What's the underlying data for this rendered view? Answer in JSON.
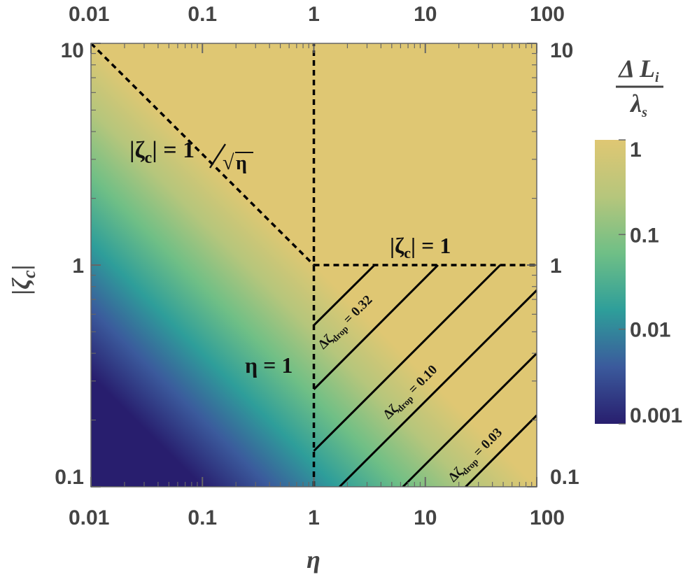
{
  "chart_data": {
    "type": "heatmap",
    "x_scale": "log",
    "y_scale": "log",
    "xlim": [
      0.01,
      100
    ],
    "ylim": [
      0.1,
      10
    ],
    "x_ticks": [
      0.01,
      0.1,
      1,
      10,
      100
    ],
    "x_tick_labels": [
      "0.01",
      "0.1",
      "1",
      "10",
      "100"
    ],
    "y_ticks": [
      0.1,
      1,
      10
    ],
    "y_tick_labels": [
      "0.1",
      "1",
      "10"
    ],
    "xlabel": "η",
    "ylabel": "|ζc|",
    "colorbar": {
      "title_numerator": "Δ L",
      "title_numerator_sub": "i",
      "title_denominator": "λ",
      "title_denominator_sub": "s",
      "scale": "log",
      "range": [
        0.001,
        1
      ],
      "ticks": [
        1,
        0.1,
        0.01,
        0.001
      ],
      "tick_labels": [
        "1",
        "0.1",
        "0.01",
        "0.001"
      ],
      "colors": [
        "#281e6e",
        "#3b5a9c",
        "#2e9e9a",
        "#6fbf86",
        "#b6c67c",
        "#dfc773"
      ]
    },
    "field": {
      "description_formula": "value = min(1, eta * zeta^2)",
      "saturation": 1
    },
    "boundaries": [
      {
        "id": "zeta-eq-inv-sqrt-eta",
        "style": "dashed",
        "points": [
          [
            0.01,
            10
          ],
          [
            1,
            1
          ]
        ]
      },
      {
        "id": "zeta-eq-1",
        "style": "dashed",
        "points": [
          [
            1,
            1
          ],
          [
            100,
            1
          ]
        ]
      },
      {
        "id": "eta-eq-1",
        "style": "dashed",
        "points": [
          [
            1,
            0.1
          ],
          [
            1,
            10
          ]
        ]
      }
    ],
    "contours": [
      {
        "value_label": "0.32",
        "points": [
          [
            1,
            0.535
          ],
          [
            3.5,
            1
          ]
        ]
      },
      {
        "value_label": "",
        "points": [
          [
            1,
            0.275
          ],
          [
            13,
            1
          ]
        ]
      },
      {
        "value_label": "0.10",
        "points": [
          [
            1,
            0.145
          ],
          [
            47,
            1
          ]
        ]
      },
      {
        "value_label": "",
        "points": [
          [
            1.7,
            0.1
          ],
          [
            100,
            0.77
          ]
        ]
      },
      {
        "value_label": "",
        "points": [
          [
            6.3,
            0.1
          ],
          [
            100,
            0.4
          ]
        ]
      },
      {
        "value_label": "0.03",
        "points": [
          [
            23,
            0.1
          ],
          [
            100,
            0.21
          ]
        ]
      }
    ],
    "annotations": {
      "inv_sqrt": {
        "lhs": "|ζ",
        "sub": "c",
        "eq": "| = ",
        "num": "1",
        "den": "η"
      },
      "zeta_one": {
        "lhs": "|ζ",
        "sub": "c",
        "eq": "| = 1"
      },
      "eta_one": "η = 1",
      "drop_prefix": "Δζ",
      "drop_sub": "drop",
      "drop_eq": " = ",
      "drop_labels": [
        "0.32",
        "0.10",
        "0.03"
      ]
    }
  }
}
